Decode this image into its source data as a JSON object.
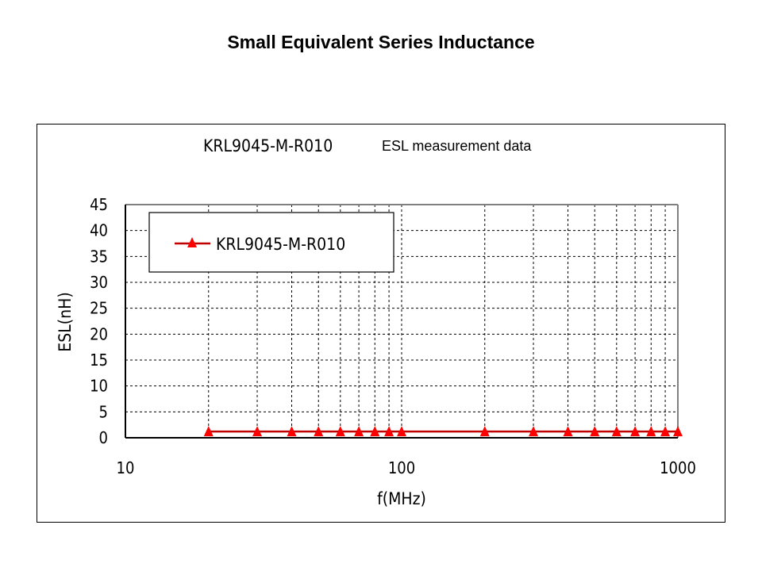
{
  "slide": {
    "title": "Small Equivalent Series Inductance"
  },
  "chart_data": {
    "type": "line",
    "title": "KRL9045-M-R010",
    "subtitle": "ESL measurement data",
    "xlabel": "f(MHz)",
    "ylabel": "ESL(nH)",
    "xscale": "log",
    "xlim": [
      10,
      1000
    ],
    "ylim": [
      0,
      45
    ],
    "xticks": [
      "10",
      "100",
      "1000"
    ],
    "yticks": [
      "0",
      "5",
      "10",
      "15",
      "20",
      "25",
      "30",
      "35",
      "40",
      "45"
    ],
    "grid": true,
    "legend": {
      "position": "top-left",
      "entries": [
        "KRL9045-M-R010"
      ]
    },
    "series": [
      {
        "name": "KRL9045-M-R010",
        "color": "#ff0000",
        "line_color": "#c00000",
        "marker": "triangle",
        "x": [
          20,
          30,
          40,
          50,
          60,
          70,
          80,
          90,
          100,
          200,
          300,
          400,
          500,
          600,
          700,
          800,
          900,
          1000
        ],
        "y": [
          1.2,
          1.2,
          1.2,
          1.2,
          1.2,
          1.2,
          1.2,
          1.2,
          1.2,
          1.2,
          1.2,
          1.2,
          1.2,
          1.2,
          1.2,
          1.2,
          1.2,
          1.2
        ]
      }
    ]
  }
}
